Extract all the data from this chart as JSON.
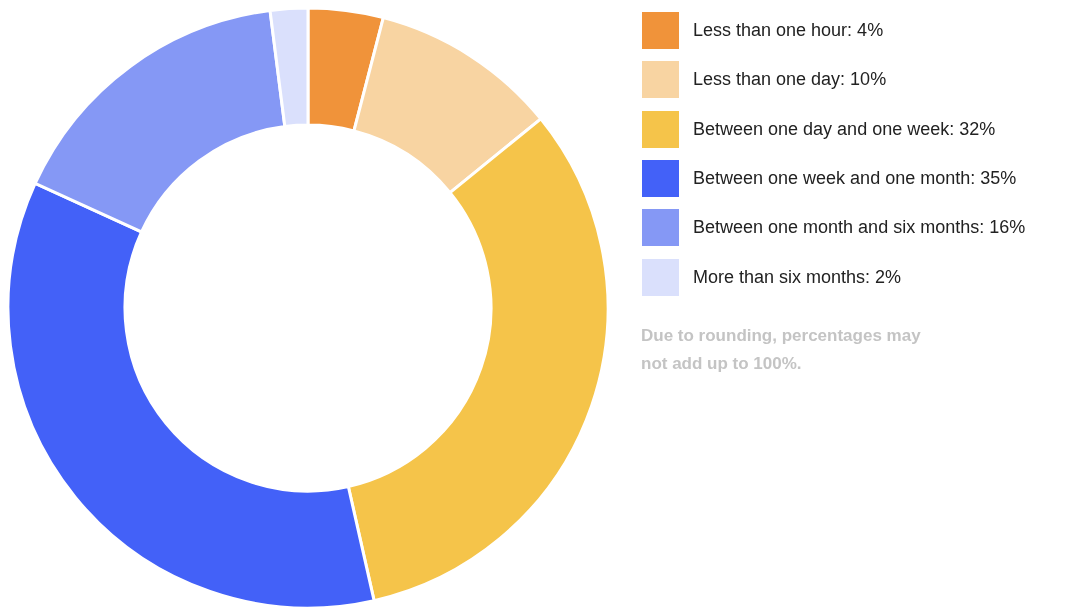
{
  "chart_data": {
    "type": "donut",
    "categories": [
      "Less than one hour: 4%",
      "Less than one day: 10%",
      "Between one day and one week: 32%",
      "Between one week and one month: 35%",
      "Between one month and six months: 16%",
      "More than six months: 2%"
    ],
    "values": [
      4,
      10,
      32,
      35,
      16,
      2
    ],
    "colors": [
      "#f0933a",
      "#f8d4a2",
      "#f5c44a",
      "#4361f8",
      "#8598f5",
      "#dae0fc"
    ],
    "legend": "top right",
    "annotations": [
      "Due to rounding, percentages may not add up to 100%."
    ]
  }
}
